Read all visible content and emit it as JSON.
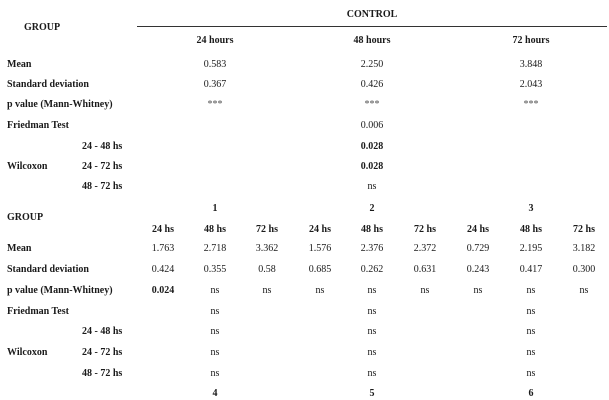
{
  "top": {
    "group_label": "GROUP",
    "control_label": "CONTROL",
    "times": [
      "24 hours",
      "48 hours",
      "72 hours"
    ],
    "rows": [
      {
        "label": "Mean",
        "values": [
          "0.583",
          "2.250",
          "3.848"
        ]
      },
      {
        "label": "Standard deviation",
        "values": [
          "0.367",
          "0.426",
          "2.043"
        ]
      },
      {
        "label": "p value (Mann-Whitney)",
        "values": [
          "***",
          "***",
          "***"
        ]
      }
    ],
    "friedman": {
      "label": "Friedman Test",
      "value": "0.006"
    },
    "wilcoxon": {
      "label": "Wilcoxon",
      "comparisons": [
        {
          "label": "24 - 48 hs",
          "value": "0.028",
          "bold": true
        },
        {
          "label": "24 - 72 hs",
          "value": "0.028",
          "bold": true
        },
        {
          "label": "48 - 72 hs",
          "value": "ns",
          "bold": false
        }
      ]
    },
    "group_numbers": [
      "1",
      "2",
      "3"
    ]
  },
  "bottom": {
    "group_label": "GROUP",
    "times": [
      "24 hs",
      "48 hs",
      "72 hs",
      "24 hs",
      "48 hs",
      "72 hs",
      "24 hs",
      "48 hs",
      "72 hs"
    ],
    "rows": [
      {
        "label": "Mean",
        "values": [
          "1.763",
          "2.718",
          "3.362",
          "1.576",
          "2.376",
          "2.372",
          "0.729",
          "2.195",
          "3.182"
        ]
      },
      {
        "label": "Standard deviation",
        "values": [
          "0.424",
          "0.355",
          "0.58",
          "0.685",
          "0.262",
          "0.631",
          "0.243",
          "0.417",
          "0.300"
        ]
      },
      {
        "label": "p value (Mann-Whitney)",
        "values": [
          "0.024",
          "ns",
          "ns",
          "ns",
          "ns",
          "ns",
          "ns",
          "ns",
          "ns"
        ]
      }
    ],
    "friedman": {
      "label": "Friedman Test",
      "values": [
        "ns",
        "ns",
        "ns"
      ]
    },
    "wilcoxon": {
      "label": "Wilcoxon",
      "comparisons": [
        {
          "label": "24 - 48 hs",
          "values": [
            "ns",
            "ns",
            "ns"
          ]
        },
        {
          "label": "24 - 72 hs",
          "values": [
            "ns",
            "ns",
            "ns"
          ]
        },
        {
          "label": "48 - 72 hs",
          "values": [
            "ns",
            "ns",
            "ns"
          ]
        }
      ]
    },
    "group_numbers": [
      "4",
      "5",
      "6"
    ]
  }
}
